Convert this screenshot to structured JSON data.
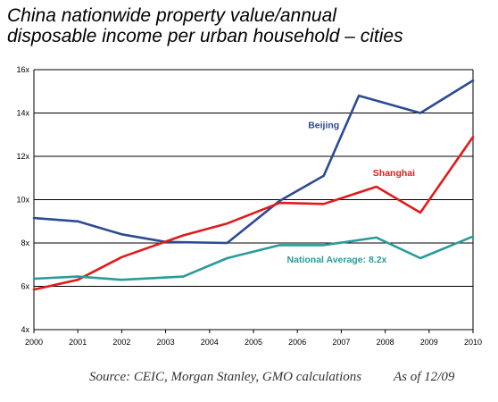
{
  "chart_data": {
    "type": "line",
    "title_lines": [
      "China nationwide property value/annual",
      "disposable income per urban household – cities"
    ],
    "x_ticks": [
      "2000",
      "2001",
      "2002",
      "2003",
      "2004",
      "2005",
      "2006",
      "2007",
      "2008",
      "2009",
      "2010"
    ],
    "y_ticks": [
      "4x",
      "6x",
      "8x",
      "10x",
      "12x",
      "14x",
      "16x"
    ],
    "xlim": [
      2000,
      2010
    ],
    "ylim": [
      4,
      16
    ],
    "grid": "horizontal",
    "series": [
      {
        "name": "Beijing",
        "color": "#2d4a93",
        "x": [
          2000,
          2001,
          2002,
          2003,
          2004.4,
          2005.6,
          2006.6,
          2007.4,
          2008.8,
          2010
        ],
        "y": [
          9.15,
          9.0,
          8.4,
          8.05,
          8.0,
          9.95,
          11.1,
          14.8,
          14.0,
          15.5
        ]
      },
      {
        "name": "Shanghai",
        "color": "#e01b1b",
        "x": [
          2000,
          2001,
          2002,
          2003.4,
          2004.4,
          2005.6,
          2006.6,
          2007.8,
          2008.8,
          2010
        ],
        "y": [
          5.85,
          6.3,
          7.35,
          8.35,
          8.9,
          9.85,
          9.8,
          10.6,
          9.4,
          12.9
        ]
      },
      {
        "name": "National Average: 8.2x",
        "color": "#2a9a9a",
        "x": [
          2000,
          2001,
          2002,
          2003.4,
          2004.4,
          2005.6,
          2006.6,
          2007.8,
          2008.8,
          2010
        ],
        "y": [
          6.35,
          6.45,
          6.3,
          6.45,
          7.3,
          7.9,
          7.9,
          8.25,
          7.3,
          8.3
        ]
      }
    ],
    "source": "Source: CEIC, Morgan Stanley, GMO calculations",
    "as_of": "As of 12/09"
  }
}
